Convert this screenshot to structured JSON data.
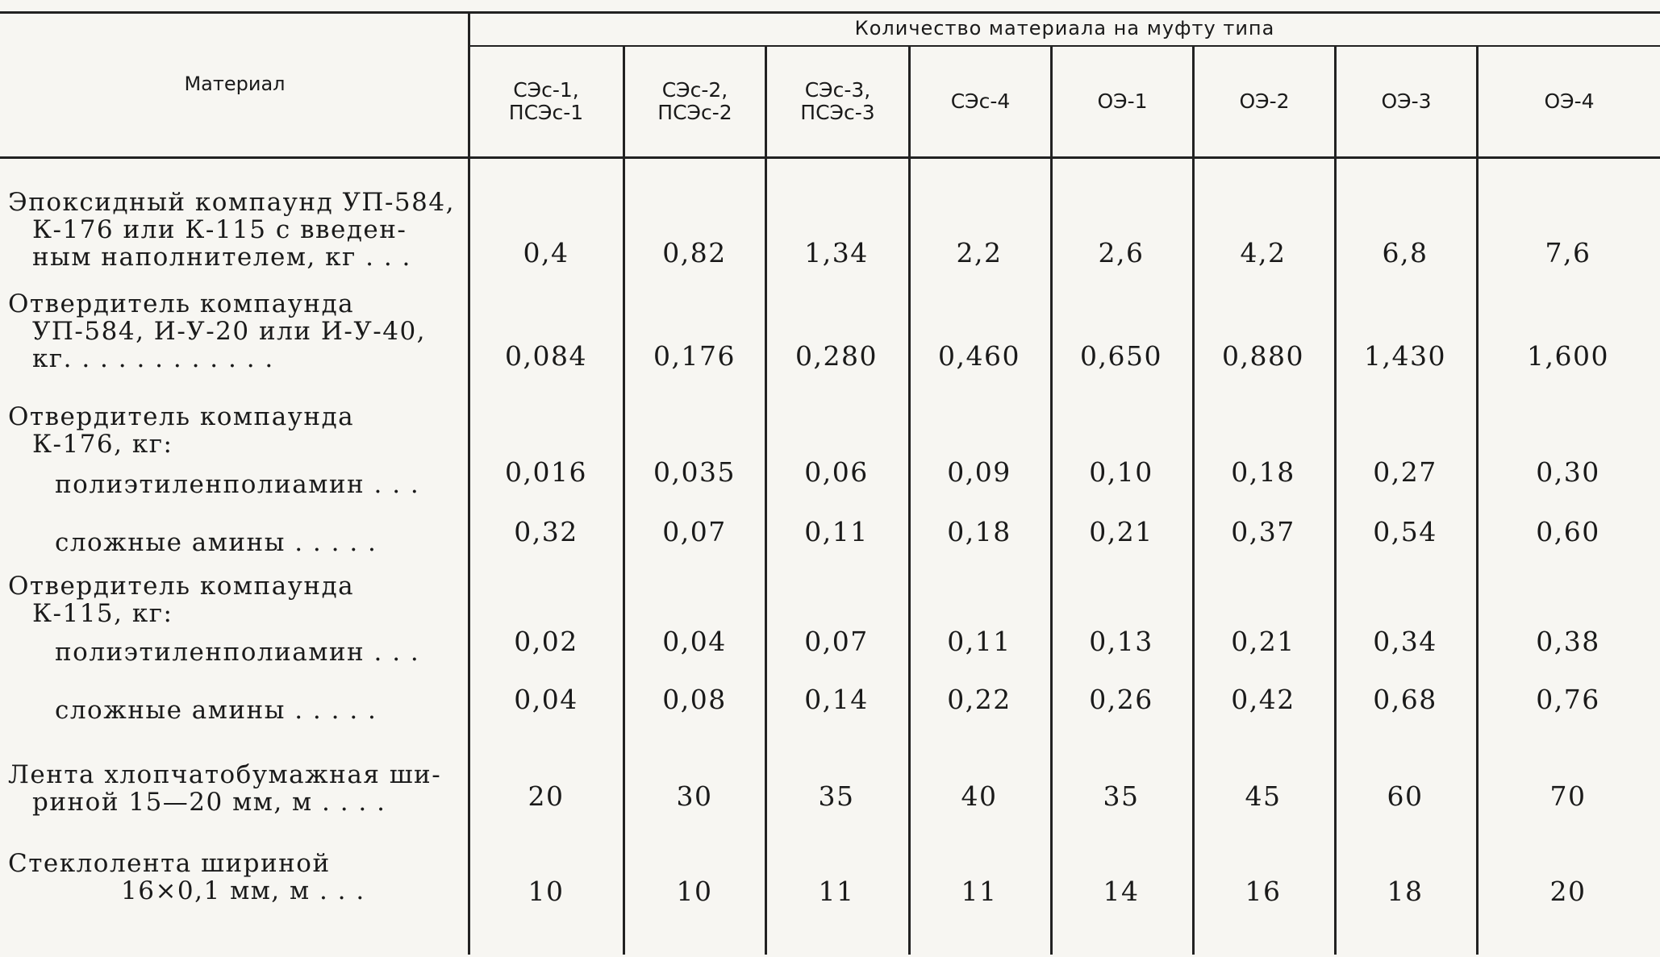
{
  "table": {
    "material_header": "Материал",
    "group_header": "Количество материала на муфту типа",
    "columns": [
      [
        "СЭс-1,",
        "ПСЭс-1"
      ],
      [
        "СЭс-2,",
        "ПСЭс-2"
      ],
      [
        "СЭс-3,",
        "ПСЭс-3"
      ],
      [
        "СЭс-4"
      ],
      [
        "ОЭ-1"
      ],
      [
        "ОЭ-2"
      ],
      [
        "ОЭ-3"
      ],
      [
        "ОЭ-4"
      ]
    ],
    "rows": [
      {
        "material": [
          "Эпоксидный компаунд УП-584,",
          "К-176 или  К-115 с введен-",
          "ным наполнителем, кг . . ."
        ],
        "values": [
          "0,4",
          "0,82",
          "1,34",
          "2,2",
          "2,6",
          "4,2",
          "6,8",
          "7,6"
        ]
      },
      {
        "material": [
          "Отвердитель компаунда",
          "УП-584, И-У-20 или И-У-40,",
          "кг. . . . . . . . . . . ."
        ],
        "values": [
          "0,084",
          "0,176",
          "0,280",
          "0,460",
          "0,650",
          "0,880",
          "1,430",
          "1,600"
        ]
      },
      {
        "material": [
          "Отвердитель компаунда",
          "К-176, кг:"
        ],
        "values": []
      },
      {
        "material": [
          "полиэтиленполиамин . . ."
        ],
        "values": [
          "0,016",
          "0,035",
          "0,06",
          "0,09",
          "0,10",
          "0,18",
          "0,27",
          "0,30"
        ]
      },
      {
        "material": [
          "сложные амины . . . . ."
        ],
        "values": [
          "0,32",
          "0,07",
          "0,11",
          "0,18",
          "0,21",
          "0,37",
          "0,54",
          "0,60"
        ]
      },
      {
        "material": [
          "Отвердитель компаунда",
          "К-115, кг:"
        ],
        "values": []
      },
      {
        "material": [
          "полиэтиленполиамин . . ."
        ],
        "values": [
          "0,02",
          "0,04",
          "0,07",
          "0,11",
          "0,13",
          "0,21",
          "0,34",
          "0,38"
        ]
      },
      {
        "material": [
          "сложные амины . . . . ."
        ],
        "values": [
          "0,04",
          "0,08",
          "0,14",
          "0,22",
          "0,26",
          "0,42",
          "0,68",
          "0,76"
        ]
      },
      {
        "material": [
          "Лента хлопчатобумажная ши-",
          "риной 15—20 мм, м . . . ."
        ],
        "values": [
          "20",
          "30",
          "35",
          "40",
          "35",
          "45",
          "60",
          "70"
        ]
      },
      {
        "material": [
          "Стеклолента   шириной",
          "16×0,1  мм,  м    . . ."
        ],
        "values": [
          "10",
          "10",
          "11",
          "11",
          "14",
          "16",
          "18",
          "20"
        ]
      }
    ]
  }
}
